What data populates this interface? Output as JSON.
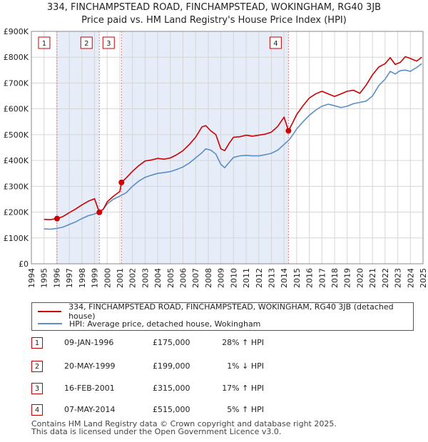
{
  "header": {
    "title_line1": "334, FINCHAMPSTEAD ROAD, FINCHAMPSTEAD, WOKINGHAM, RG40 3JB",
    "title_line2": "Price paid vs. HM Land Registry's House Price Index (HPI)"
  },
  "colors": {
    "property": "#cc0000",
    "hpi": "#5b8ec4",
    "shade": "#e6ecf8",
    "grid": "#d6d6d6",
    "marker_line": "#e08080"
  },
  "chart_data": {
    "type": "line",
    "x_range": [
      1994,
      2025
    ],
    "ylim": [
      0,
      900000
    ],
    "y_ticks": [
      {
        "value": 0,
        "label": "£0"
      },
      {
        "value": 100000,
        "label": "£100K"
      },
      {
        "value": 200000,
        "label": "£200K"
      },
      {
        "value": 300000,
        "label": "£300K"
      },
      {
        "value": 400000,
        "label": "£400K"
      },
      {
        "value": 500000,
        "label": "£500K"
      },
      {
        "value": 600000,
        "label": "£600K"
      },
      {
        "value": 700000,
        "label": "£700K"
      },
      {
        "value": 800000,
        "label": "£800K"
      },
      {
        "value": 900000,
        "label": "£900K"
      }
    ],
    "x_ticks": [
      "1994",
      "1995",
      "1996",
      "1997",
      "1998",
      "1999",
      "2000",
      "2001",
      "2002",
      "2003",
      "2004",
      "2005",
      "2006",
      "2007",
      "2008",
      "2009",
      "2010",
      "2011",
      "2012",
      "2013",
      "2014",
      "2015",
      "2016",
      "2017",
      "2018",
      "2019",
      "2020",
      "2021",
      "2022",
      "2023",
      "2024",
      "2025"
    ],
    "grid": true,
    "series": [
      {
        "name": "334, FINCHAMPSTEAD ROAD, FINCHAMPSTEAD, WOKINGHAM, RG40 3JB (detached house)",
        "x": [
          1995.0,
          1995.5,
          1996.03,
          1996.5,
          1997.0,
          1997.5,
          1998.0,
          1998.5,
          1999.0,
          1999.38,
          1999.7,
          2000.0,
          2000.5,
          2001.0,
          2001.13,
          2001.5,
          2002.0,
          2002.5,
          2003.0,
          2003.5,
          2004.0,
          2004.5,
          2005.0,
          2005.5,
          2006.0,
          2006.5,
          2007.0,
          2007.5,
          2007.8,
          2008.2,
          2008.6,
          2009.0,
          2009.3,
          2009.7,
          2010.0,
          2010.5,
          2011.0,
          2011.5,
          2012.0,
          2012.5,
          2013.0,
          2013.5,
          2014.0,
          2014.35,
          2014.7,
          2015.0,
          2015.5,
          2016.0,
          2016.5,
          2017.0,
          2017.5,
          2018.0,
          2018.5,
          2019.0,
          2019.5,
          2020.0,
          2020.5,
          2021.0,
          2021.5,
          2022.0,
          2022.4,
          2022.8,
          2023.2,
          2023.6,
          2024.0,
          2024.5,
          2024.9
        ],
        "y": [
          172000,
          171000,
          175000,
          183000,
          198000,
          212000,
          228000,
          242000,
          252000,
          199000,
          212000,
          240000,
          262000,
          280000,
          315000,
          332000,
          358000,
          380000,
          398000,
          402000,
          408000,
          405000,
          410000,
          422000,
          438000,
          462000,
          490000,
          530000,
          535000,
          515000,
          500000,
          445000,
          438000,
          470000,
          490000,
          492000,
          498000,
          494000,
          498000,
          502000,
          510000,
          532000,
          568000,
          515000,
          548000,
          578000,
          612000,
          642000,
          658000,
          668000,
          658000,
          648000,
          658000,
          668000,
          672000,
          660000,
          692000,
          732000,
          762000,
          775000,
          798000,
          772000,
          780000,
          802000,
          795000,
          785000,
          800000
        ]
      },
      {
        "name": "HPI: Average price, detached house, Wokingham",
        "x": [
          1995.0,
          1995.5,
          1996.0,
          1996.5,
          1997.0,
          1997.5,
          1998.0,
          1998.5,
          1999.0,
          1999.4,
          1999.7,
          2000.0,
          2000.5,
          2001.0,
          2001.5,
          2002.0,
          2002.5,
          2003.0,
          2003.5,
          2004.0,
          2004.5,
          2005.0,
          2005.5,
          2006.0,
          2006.5,
          2007.0,
          2007.5,
          2007.8,
          2008.2,
          2008.6,
          2009.0,
          2009.3,
          2009.7,
          2010.0,
          2010.5,
          2011.0,
          2011.5,
          2012.0,
          2012.5,
          2013.0,
          2013.5,
          2014.0,
          2014.4,
          2014.7,
          2015.0,
          2015.5,
          2016.0,
          2016.5,
          2017.0,
          2017.5,
          2018.0,
          2018.5,
          2019.0,
          2019.5,
          2020.0,
          2020.5,
          2021.0,
          2021.5,
          2022.0,
          2022.4,
          2022.8,
          2023.2,
          2023.6,
          2024.0,
          2024.5,
          2024.9
        ],
        "y": [
          135000,
          134000,
          137000,
          142000,
          152000,
          162000,
          175000,
          186000,
          193000,
          201000,
          212000,
          232000,
          250000,
          262000,
          275000,
          300000,
          320000,
          335000,
          343000,
          350000,
          353000,
          357000,
          365000,
          375000,
          390000,
          410000,
          430000,
          445000,
          440000,
          425000,
          385000,
          372000,
          395000,
          412000,
          418000,
          420000,
          418000,
          418000,
          422000,
          428000,
          440000,
          462000,
          480000,
          500000,
          522000,
          550000,
          575000,
          595000,
          610000,
          618000,
          612000,
          605000,
          610000,
          620000,
          625000,
          630000,
          650000,
          690000,
          715000,
          745000,
          735000,
          748000,
          750000,
          745000,
          760000,
          775000
        ]
      }
    ],
    "sales": [
      {
        "id": "1",
        "x": 1996.03,
        "price": 175000,
        "date": "09-JAN-1996",
        "price_label": "£175,000",
        "hpi": "28% ↑ HPI"
      },
      {
        "id": "2",
        "x": 1999.38,
        "price": 199000,
        "date": "20-MAY-1999",
        "price_label": "£199,000",
        "hpi": "1% ↓ HPI"
      },
      {
        "id": "3",
        "x": 2001.13,
        "price": 315000,
        "date": "16-FEB-2001",
        "price_label": "£315,000",
        "hpi": "17% ↑ HPI"
      },
      {
        "id": "4",
        "x": 2014.35,
        "price": 515000,
        "date": "07-MAY-2014",
        "price_label": "£515,000",
        "hpi": "5% ↑ HPI"
      }
    ]
  },
  "legend": {
    "property_label": "334, FINCHAMPSTEAD ROAD, FINCHAMPSTEAD, WOKINGHAM, RG40 3JB (detached house)",
    "hpi_label": "HPI: Average price, detached house, Wokingham"
  },
  "footer": {
    "line1": "Contains HM Land Registry data © Crown copyright and database right 2025.",
    "line2": "This data is licensed under the Open Government Licence v3.0."
  }
}
